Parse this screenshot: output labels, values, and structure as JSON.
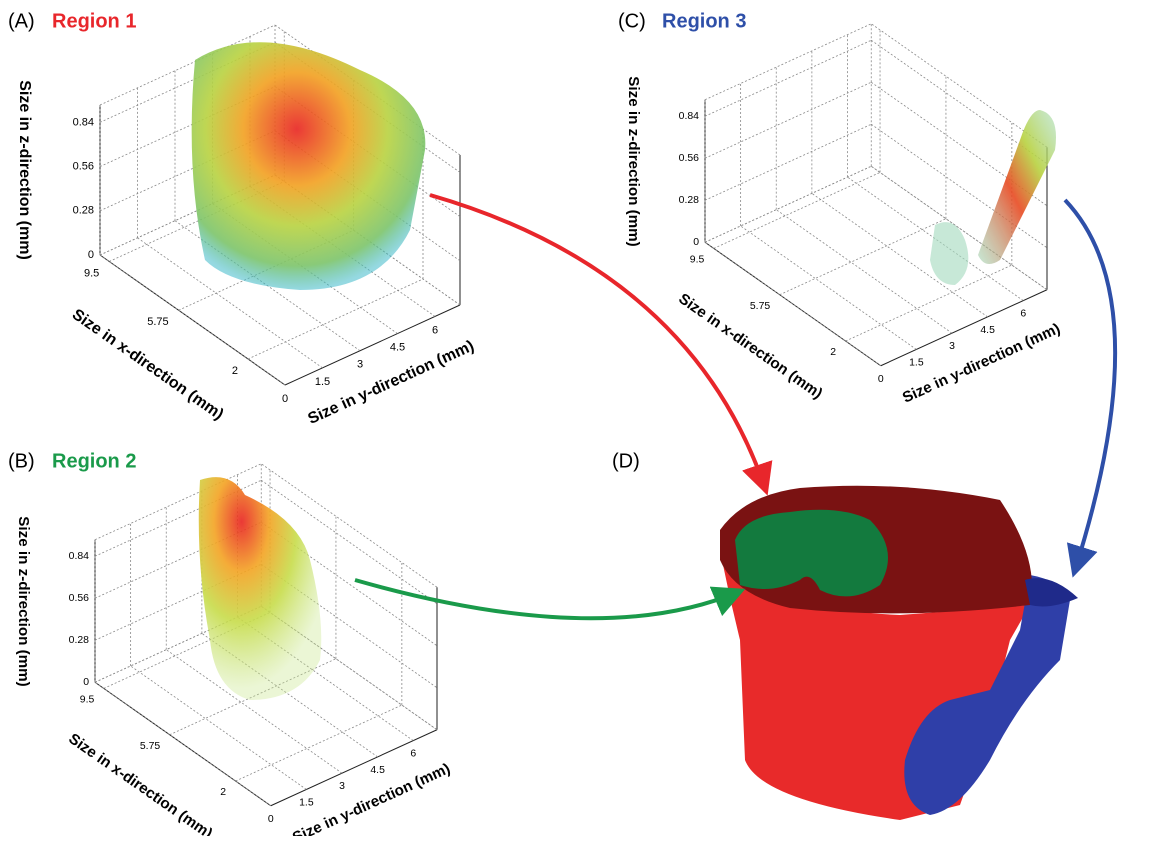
{
  "panels": [
    {
      "letter": "(A)",
      "title": "Region 1",
      "title_color": "#e8262b",
      "z_label": "Size in z-direction (mm)",
      "x_label": "Size in x-direction (mm)",
      "y_label": "Size in y-direction (mm)",
      "zticks": [
        "0",
        "0.28",
        "0.56",
        "0.84"
      ],
      "xticks": [
        "9.5",
        "5.75",
        "2"
      ],
      "yticks": [
        "0",
        "1.5",
        "3",
        "4.5",
        "6"
      ]
    },
    {
      "letter": "(B)",
      "title": "Region 2",
      "title_color": "#1a9a4a",
      "z_label": "Size in z-direction (mm)",
      "x_label": "Size in x-direction (mm)",
      "y_label": "Size in y-direction (mm)",
      "zticks": [
        "0",
        "0.28",
        "0.56",
        "0.84"
      ],
      "xticks": [
        "9.5",
        "5.75",
        "2"
      ],
      "yticks": [
        "0",
        "1.5",
        "3",
        "4.5",
        "6"
      ]
    },
    {
      "letter": "(C)",
      "title": "Region 3",
      "title_color": "#2e4fa8",
      "z_label": "Size in z-direction (mm)",
      "x_label": "Size in x-direction (mm)",
      "y_label": "Size in y-direction (mm)",
      "zticks": [
        "0",
        "0.28",
        "0.56",
        "0.84"
      ],
      "xticks": [
        "9.5",
        "5.75",
        "2"
      ],
      "yticks": [
        "0",
        "1.5",
        "3",
        "4.5",
        "6"
      ]
    }
  ],
  "panel_d": {
    "letter": "(D)"
  }
}
